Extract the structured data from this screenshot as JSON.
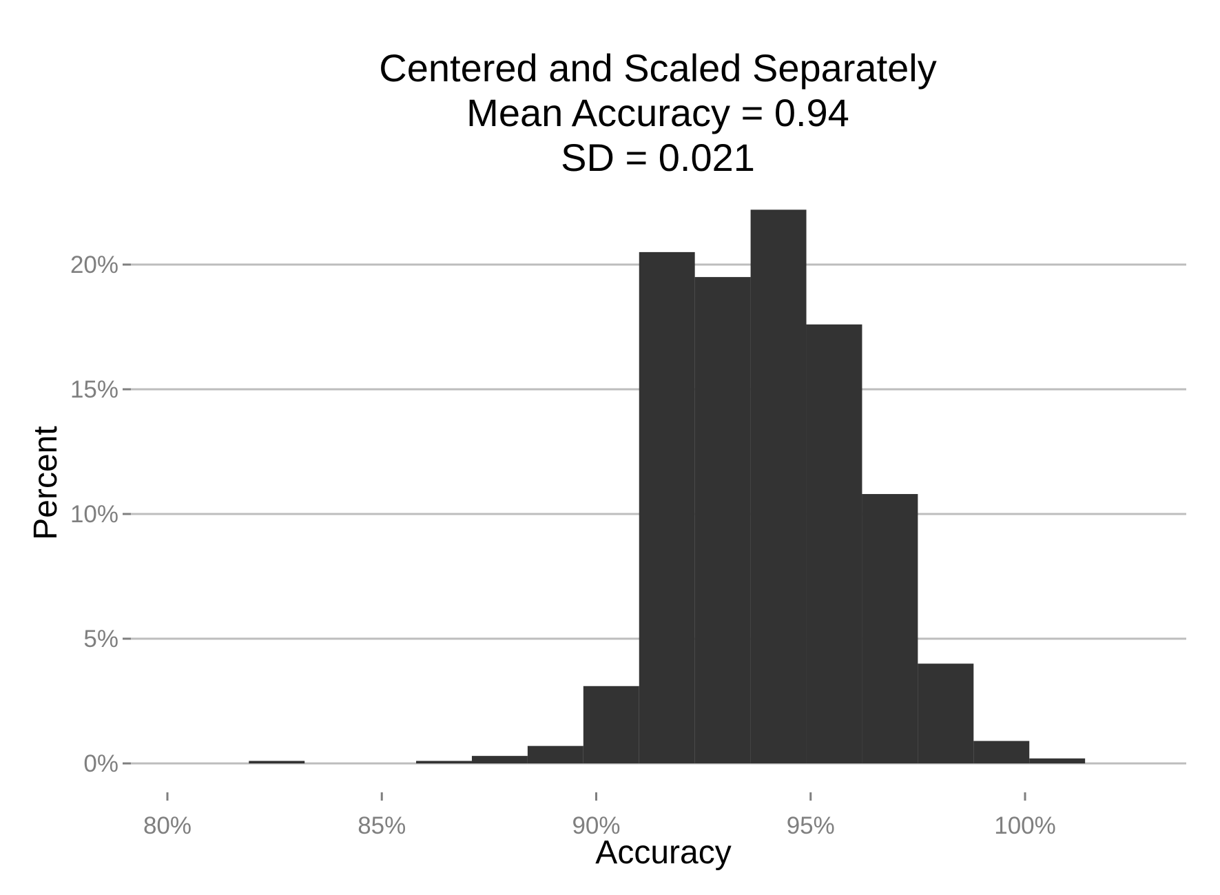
{
  "chart_data": {
    "type": "bar",
    "title_lines": [
      "Centered and Scaled Separately",
      "Mean Accuracy = 0.94",
      "SD = 0.021"
    ],
    "xlabel": "Accuracy",
    "ylabel": "Percent",
    "xlim": [
      0.792,
      1.034
    ],
    "ylim": [
      0,
      0.225
    ],
    "x_ticks": [
      0.8,
      0.85,
      0.9,
      0.95,
      1.0
    ],
    "x_tick_labels": [
      "80%",
      "85%",
      "90%",
      "95%",
      "100%"
    ],
    "y_ticks": [
      0,
      0.05,
      0.1,
      0.15,
      0.2
    ],
    "y_tick_labels": [
      "0%",
      "5%",
      "10%",
      "15%",
      "20%"
    ],
    "grid": "horizontal-major",
    "bin_width": 0.013,
    "bins": [
      {
        "x": 0.8255,
        "value": 0.001
      },
      {
        "x": 0.8645,
        "value": 0.001
      },
      {
        "x": 0.8775,
        "value": 0.003
      },
      {
        "x": 0.8905,
        "value": 0.007
      },
      {
        "x": 0.9035,
        "value": 0.031
      },
      {
        "x": 0.9165,
        "value": 0.205
      },
      {
        "x": 0.9295,
        "value": 0.195
      },
      {
        "x": 0.9425,
        "value": 0.222
      },
      {
        "x": 0.9555,
        "value": 0.176
      },
      {
        "x": 0.9685,
        "value": 0.108
      },
      {
        "x": 0.9815,
        "value": 0.04
      },
      {
        "x": 0.9945,
        "value": 0.009
      },
      {
        "x": 1.0075,
        "value": 0.002
      }
    ],
    "bar_color": "#333333",
    "grid_color": "#bdbdbd",
    "tick_color": "#7f7f7f"
  }
}
